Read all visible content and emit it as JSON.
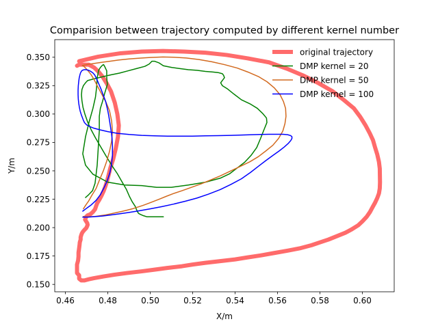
{
  "chart_data": {
    "type": "line",
    "title": "Comparision between trajectory computed by different kernel number",
    "xlabel": "X/m",
    "ylabel": "Y/m",
    "xlim": [
      0.455,
      0.615
    ],
    "ylim": [
      0.1435,
      0.3655
    ],
    "xticks": [
      "0.46",
      "0.48",
      "0.50",
      "0.52",
      "0.54",
      "0.56",
      "0.58",
      "0.60"
    ],
    "yticks": [
      "0.150",
      "0.175",
      "0.200",
      "0.225",
      "0.250",
      "0.275",
      "0.300",
      "0.325",
      "0.350"
    ],
    "grid": false,
    "legend_position": "top-right",
    "series": [
      {
        "name": "original trajectory",
        "color": "#ff6b6b",
        "x": [
          0.4655,
          0.4665,
          0.4675,
          0.469,
          0.471,
          0.4735,
          0.4755,
          0.4775,
          0.4795,
          0.4815,
          0.4833,
          0.4845,
          0.4852,
          0.4848,
          0.4838,
          0.4825,
          0.4812,
          0.4802,
          0.4795,
          0.4788,
          0.478,
          0.477,
          0.476,
          0.475,
          0.4745,
          0.474,
          0.473,
          0.4718,
          0.4705,
          0.4698,
          0.4695,
          0.4693,
          0.4698,
          0.4703,
          0.4705,
          0.4702,
          0.4698,
          0.469,
          0.4683,
          0.4678,
          0.4675,
          0.4672,
          0.4672,
          0.4668,
          0.4667,
          0.4665,
          0.4662,
          0.4662,
          0.466,
          0.4655,
          0.4655,
          0.4655,
          0.4665,
          0.4665,
          0.4675,
          0.469,
          0.471,
          0.4735,
          0.478,
          0.483,
          0.489,
          0.496,
          0.502,
          0.508,
          0.515,
          0.52,
          0.526,
          0.533,
          0.54,
          0.546,
          0.552,
          0.558,
          0.565,
          0.571,
          0.576,
          0.58,
          0.584,
          0.588,
          0.592,
          0.595,
          0.598,
          0.6,
          0.602,
          0.6035,
          0.6048,
          0.606,
          0.607,
          0.6078,
          0.6082,
          0.6083,
          0.6082,
          0.6078,
          0.607,
          0.606,
          0.605,
          0.6035,
          0.6015,
          0.599,
          0.596,
          0.5915,
          0.586,
          0.579,
          0.572,
          0.565,
          0.556,
          0.546,
          0.536,
          0.526,
          0.516,
          0.506,
          0.496,
          0.486,
          0.4755,
          0.4665
        ],
        "y": [
          0.3425,
          0.3435,
          0.3435,
          0.3435,
          0.3435,
          0.341,
          0.3375,
          0.333,
          0.327,
          0.32,
          0.31,
          0.3,
          0.29,
          0.28,
          0.27,
          0.26,
          0.2525,
          0.245,
          0.24,
          0.236,
          0.232,
          0.228,
          0.2245,
          0.2215,
          0.219,
          0.2162,
          0.2138,
          0.2118,
          0.2108,
          0.2095,
          0.208,
          0.207,
          0.2055,
          0.204,
          0.2025,
          0.201,
          0.1995,
          0.198,
          0.1965,
          0.195,
          0.1935,
          0.1915,
          0.1895,
          0.187,
          0.185,
          0.182,
          0.178,
          0.1745,
          0.171,
          0.1675,
          0.164,
          0.16,
          0.158,
          0.155,
          0.1535,
          0.1535,
          0.1545,
          0.1555,
          0.157,
          0.1585,
          0.16,
          0.1615,
          0.163,
          0.1645,
          0.166,
          0.1675,
          0.169,
          0.1705,
          0.172,
          0.1738,
          0.1755,
          0.1775,
          0.1798,
          0.182,
          0.1845,
          0.187,
          0.1895,
          0.1925,
          0.1955,
          0.1985,
          0.202,
          0.2055,
          0.2095,
          0.2135,
          0.218,
          0.222,
          0.226,
          0.23,
          0.2345,
          0.24,
          0.252,
          0.258,
          0.2645,
          0.2705,
          0.277,
          0.283,
          0.29,
          0.2975,
          0.305,
          0.312,
          0.32,
          0.3275,
          0.334,
          0.3395,
          0.3455,
          0.349,
          0.352,
          0.354,
          0.355,
          0.3555,
          0.355,
          0.3535,
          0.3505,
          0.3465
        ]
      },
      {
        "name": "DMP kernel = 20",
        "color": "#008000",
        "x": [
          0.4695,
          0.471,
          0.4728,
          0.474,
          0.475,
          0.4755,
          0.4758,
          0.476,
          0.476,
          0.476,
          0.4765,
          0.4775,
          0.4785,
          0.4798,
          0.4795,
          0.4795,
          0.4785,
          0.478,
          0.4775,
          0.4765,
          0.4757,
          0.475,
          0.4747,
          0.4742,
          0.473,
          0.4712,
          0.4695,
          0.4682,
          0.4695,
          0.473,
          0.48,
          0.488,
          0.496,
          0.503,
          0.51,
          0.518,
          0.526,
          0.533,
          0.5375,
          0.541,
          0.5445,
          0.5475,
          0.5502,
          0.552,
          0.5538,
          0.555,
          0.5548,
          0.553,
          0.5505,
          0.547,
          0.543,
          0.5395,
          0.5365,
          0.534,
          0.5332,
          0.534,
          0.535,
          0.5346,
          0.534,
          0.532,
          0.5295,
          0.526,
          0.522,
          0.518,
          0.514,
          0.5102,
          0.5062,
          0.5042,
          0.502,
          0.5015,
          0.5008,
          0.5003,
          0.4995,
          0.4975,
          0.4935,
          0.4895,
          0.4855,
          0.4815,
          0.478,
          0.4735,
          0.4705,
          0.4695,
          0.4685,
          0.4678,
          0.4676,
          0.4678,
          0.4683,
          0.4692,
          0.4705,
          0.4722,
          0.4742,
          0.4767,
          0.4792,
          0.4818,
          0.4845,
          0.4868,
          0.4888,
          0.4902,
          0.4915,
          0.493,
          0.4935,
          0.494,
          0.4945,
          0.4955,
          0.4968,
          0.4985,
          0.5003,
          0.5022,
          0.5042,
          0.5062
        ],
        "y": [
          0.2265,
          0.229,
          0.2325,
          0.239,
          0.255,
          0.27,
          0.28,
          0.285,
          0.29,
          0.298,
          0.305,
          0.311,
          0.318,
          0.326,
          0.332,
          0.338,
          0.342,
          0.3435,
          0.343,
          0.341,
          0.3385,
          0.332,
          0.323,
          0.315,
          0.305,
          0.293,
          0.28,
          0.265,
          0.255,
          0.247,
          0.24,
          0.2375,
          0.237,
          0.2355,
          0.2355,
          0.2375,
          0.24,
          0.2435,
          0.2475,
          0.2525,
          0.2575,
          0.2635,
          0.2705,
          0.2785,
          0.287,
          0.2925,
          0.2965,
          0.3005,
          0.305,
          0.309,
          0.3125,
          0.3175,
          0.322,
          0.325,
          0.3275,
          0.3295,
          0.332,
          0.334,
          0.3355,
          0.3365,
          0.337,
          0.3375,
          0.3385,
          0.339,
          0.34,
          0.341,
          0.3425,
          0.345,
          0.3465,
          0.3465,
          0.3465,
          0.3455,
          0.344,
          0.342,
          0.34,
          0.338,
          0.336,
          0.3345,
          0.333,
          0.331,
          0.3295,
          0.3275,
          0.325,
          0.3215,
          0.317,
          0.312,
          0.306,
          0.3,
          0.293,
          0.286,
          0.279,
          0.271,
          0.263,
          0.255,
          0.2475,
          0.24,
          0.2335,
          0.2275,
          0.2228,
          0.2185,
          0.216,
          0.214,
          0.2125,
          0.2115,
          0.2105,
          0.2095,
          0.2095,
          0.2095,
          0.2095,
          0.2095
        ]
      },
      {
        "name": "DMP kernel = 50",
        "color": "#d2691e",
        "x": [
          0.4685,
          0.4695,
          0.471,
          0.4725,
          0.4745,
          0.4762,
          0.478,
          0.4795,
          0.4808,
          0.4818,
          0.4822,
          0.4818,
          0.4808,
          0.479,
          0.477,
          0.475,
          0.4735,
          0.472,
          0.4705,
          0.4695,
          0.4688,
          0.4682,
          0.468,
          0.468,
          0.4683,
          0.4692,
          0.471,
          0.4735,
          0.477,
          0.481,
          0.485,
          0.49,
          0.495,
          0.5,
          0.506,
          0.511,
          0.517,
          0.523,
          0.529,
          0.535,
          0.541,
          0.546,
          0.551,
          0.555,
          0.5585,
          0.5612,
          0.5628,
          0.5638,
          0.564,
          0.5635,
          0.5625,
          0.5605,
          0.5578,
          0.5545,
          0.551,
          0.547,
          0.542,
          0.5375,
          0.533,
          0.5285,
          0.524,
          0.5195,
          0.515,
          0.511,
          0.5075,
          0.5045,
          0.5015,
          0.499,
          0.4965,
          0.494,
          0.4915,
          0.489,
          0.4865,
          0.484,
          0.4815,
          0.479,
          0.4765,
          0.474,
          0.4715,
          0.4695,
          0.4685
        ],
        "y": [
          0.2165,
          0.2195,
          0.2235,
          0.2285,
          0.2345,
          0.2425,
          0.2505,
          0.2585,
          0.267,
          0.276,
          0.285,
          0.294,
          0.303,
          0.311,
          0.318,
          0.325,
          0.3305,
          0.335,
          0.3385,
          0.3405,
          0.3418,
          0.3425,
          0.3428,
          0.3428,
          0.3428,
          0.3432,
          0.3438,
          0.3445,
          0.3455,
          0.3465,
          0.3475,
          0.3485,
          0.3492,
          0.3498,
          0.3502,
          0.35,
          0.3493,
          0.348,
          0.346,
          0.3435,
          0.3405,
          0.337,
          0.333,
          0.3285,
          0.323,
          0.317,
          0.311,
          0.305,
          0.298,
          0.2915,
          0.285,
          0.2785,
          0.2725,
          0.2675,
          0.2625,
          0.258,
          0.2535,
          0.2495,
          0.2455,
          0.242,
          0.2385,
          0.2355,
          0.2325,
          0.23,
          0.2275,
          0.2252,
          0.223,
          0.2212,
          0.2195,
          0.218,
          0.2165,
          0.2153,
          0.2142,
          0.2132,
          0.2122,
          0.2112,
          0.2105,
          0.2098,
          0.2095,
          0.2095,
          0.2098
        ]
      },
      {
        "name": "DMP kernel = 100",
        "color": "#0000ff",
        "x": [
          0.4682,
          0.47,
          0.4722,
          0.4745,
          0.4765,
          0.4782,
          0.4798,
          0.481,
          0.4818,
          0.4822,
          0.4822,
          0.482,
          0.4815,
          0.481,
          0.4805,
          0.48,
          0.4795,
          0.479,
          0.4782,
          0.4775,
          0.4768,
          0.476,
          0.4752,
          0.4745,
          0.4738,
          0.473,
          0.472,
          0.471,
          0.4698,
          0.4688,
          0.468,
          0.4675,
          0.4671,
          0.4668,
          0.4665,
          0.4663,
          0.4661,
          0.466,
          0.466,
          0.4661,
          0.4663,
          0.4666,
          0.467,
          0.4675,
          0.468,
          0.4685,
          0.469,
          0.47,
          0.4715,
          0.4735,
          0.4765,
          0.48,
          0.4845,
          0.49,
          0.496,
          0.502,
          0.508,
          0.514,
          0.52,
          0.526,
          0.532,
          0.538,
          0.543,
          0.548,
          0.552,
          0.556,
          0.5595,
          0.5625,
          0.5648,
          0.5662,
          0.5668,
          0.5668,
          0.5662,
          0.565,
          0.5632,
          0.5608,
          0.5578,
          0.5545,
          0.551,
          0.5472,
          0.543,
          0.538,
          0.533,
          0.5275,
          0.522,
          0.5165,
          0.511,
          0.5055,
          0.5,
          0.4945,
          0.4895,
          0.485,
          0.481,
          0.4775,
          0.474,
          0.471,
          0.469,
          0.4682
        ],
        "y": [
          0.2145,
          0.217,
          0.22,
          0.224,
          0.229,
          0.235,
          0.2415,
          0.2485,
          0.256,
          0.264,
          0.272,
          0.279,
          0.286,
          0.292,
          0.298,
          0.303,
          0.307,
          0.311,
          0.315,
          0.3185,
          0.322,
          0.3255,
          0.329,
          0.332,
          0.3345,
          0.3362,
          0.3375,
          0.3385,
          0.339,
          0.339,
          0.3385,
          0.3375,
          0.336,
          0.334,
          0.3315,
          0.3285,
          0.325,
          0.321,
          0.317,
          0.313,
          0.3095,
          0.306,
          0.3025,
          0.2995,
          0.297,
          0.2945,
          0.2925,
          0.2905,
          0.289,
          0.2875,
          0.286,
          0.2845,
          0.283,
          0.282,
          0.2812,
          0.2808,
          0.2805,
          0.2805,
          0.2805,
          0.2808,
          0.281,
          0.2812,
          0.2815,
          0.2818,
          0.282,
          0.2822,
          0.2822,
          0.2822,
          0.2818,
          0.281,
          0.28,
          0.2785,
          0.2765,
          0.274,
          0.271,
          0.2675,
          0.2635,
          0.259,
          0.254,
          0.2485,
          0.243,
          0.238,
          0.2335,
          0.2295,
          0.226,
          0.2232,
          0.2207,
          0.2185,
          0.2165,
          0.2147,
          0.2132,
          0.212,
          0.211,
          0.2102,
          0.2097,
          0.2093,
          0.2092,
          0.2092
        ]
      }
    ]
  }
}
